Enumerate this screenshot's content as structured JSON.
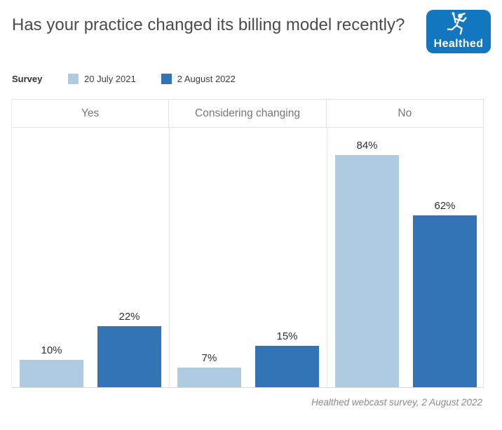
{
  "header": {
    "title": "Has your practice changed its billing model recently?",
    "logo_text": "Healthed",
    "logo_color": "#1377c0"
  },
  "legend": {
    "label": "Survey",
    "items": [
      {
        "label": "20 July 2021",
        "color": "#aecbe2"
      },
      {
        "label": "2 August 2022",
        "color": "#3274b5"
      }
    ]
  },
  "footer": {
    "caption": "Healthed webcast survey, 2 August 2022"
  },
  "chart_data": {
    "type": "bar",
    "title": "Has your practice changed its billing model recently?",
    "categories": [
      "Yes",
      "Considering changing",
      "No"
    ],
    "series": [
      {
        "name": "20 July 2021",
        "color": "#aecbe2",
        "values": [
          10,
          7,
          84
        ]
      },
      {
        "name": "2 August 2022",
        "color": "#3274b5",
        "values": [
          22,
          15,
          62
        ]
      }
    ],
    "value_suffix": "%",
    "ylim": [
      0,
      94
    ],
    "grid": false,
    "legend_position": "top",
    "panel_header_color": "#767676",
    "caption": "Healthed webcast survey, 2 August 2022"
  }
}
